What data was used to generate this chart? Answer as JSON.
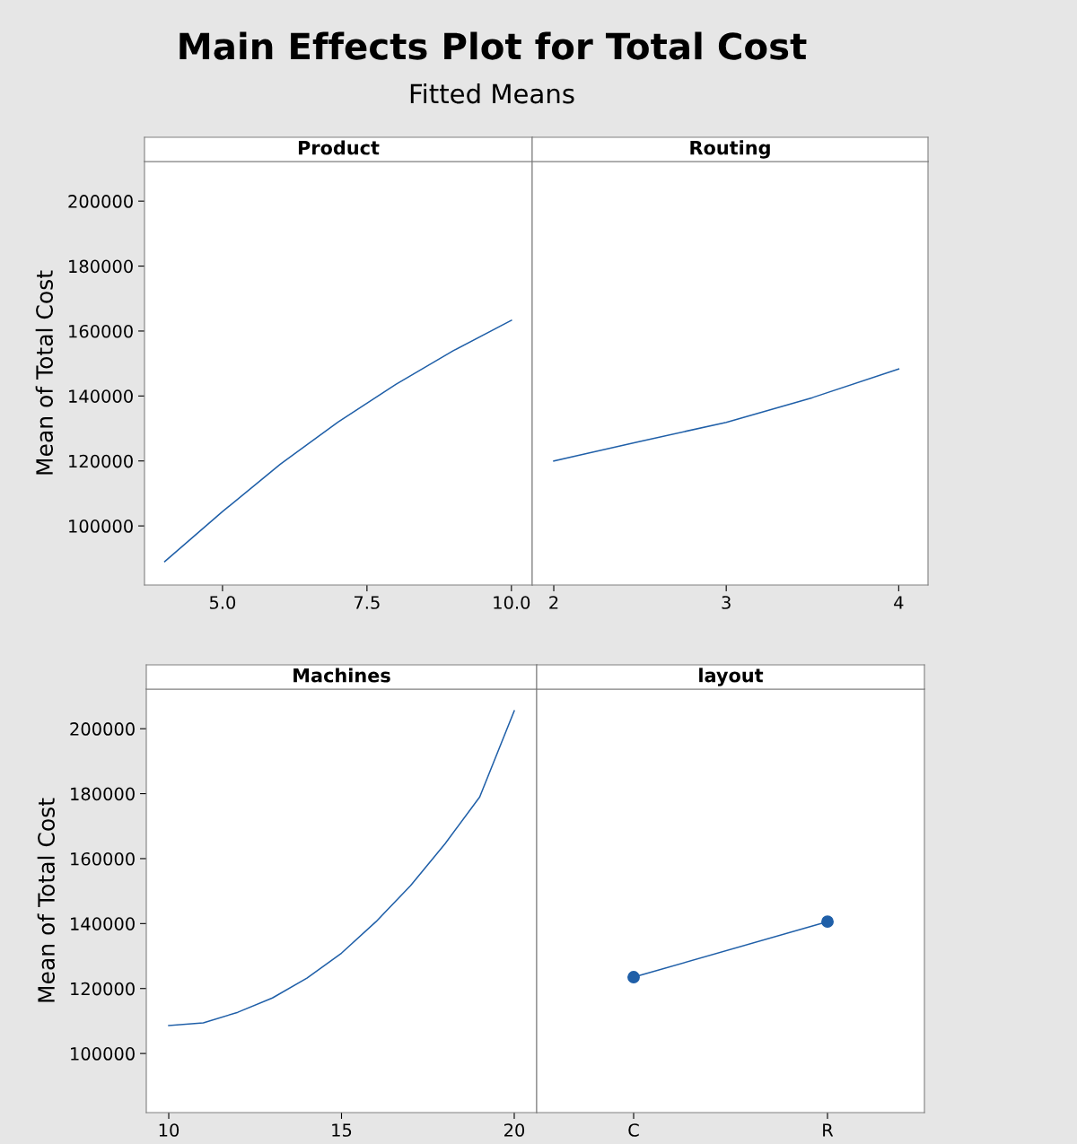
{
  "chart_data": [
    {
      "type": "other",
      "title": "Main Effects Plot for Total Cost",
      "subtitle": "Fitted Means"
    },
    {
      "type": "line",
      "title": "Product",
      "ylabel": "Mean of Total Cost",
      "color": "#1f5fa8",
      "marker": "none",
      "x": [
        4.0,
        5.0,
        6.0,
        7.0,
        8.0,
        9.0,
        10.0
      ],
      "values": [
        89000,
        104400,
        119000,
        132000,
        143600,
        154000,
        163300
      ],
      "xlim": [
        3.65,
        10.36
      ],
      "xticks": [
        {
          "value": 5.0,
          "label": "5.0"
        },
        {
          "value": 7.5,
          "label": "7.5"
        },
        {
          "value": 10.0,
          "label": "10.0"
        }
      ],
      "ylim": [
        81800,
        212200
      ],
      "yticks": [
        100000,
        120000,
        140000,
        160000,
        180000,
        200000
      ],
      "grid": false
    },
    {
      "type": "line",
      "title": "Routing",
      "color": "#1f5fa8",
      "marker": "none",
      "tick_labels": "x",
      "x": [
        2.0,
        2.5,
        3.0,
        3.5,
        4.0
      ],
      "values": [
        120000,
        126000,
        131900,
        139500,
        148300
      ],
      "xlim": [
        1.875,
        4.17
      ],
      "xticks": [
        2,
        3,
        4
      ],
      "ylim": [
        81800,
        212200
      ],
      "yticks": [
        100000,
        120000,
        140000,
        160000,
        180000,
        200000
      ],
      "grid": false
    },
    {
      "type": "line",
      "title": "Machines",
      "ylabel": "Mean of Total Cost",
      "color": "#1f5fa8",
      "marker": "none",
      "x": [
        10,
        11,
        12,
        13,
        14,
        15,
        16,
        17,
        18,
        19,
        20
      ],
      "values": [
        108600,
        109400,
        112700,
        117100,
        123200,
        130900,
        140600,
        151700,
        164600,
        179000,
        205500
      ],
      "xlim": [
        9.35,
        20.65
      ],
      "xticks": [
        10,
        15,
        20
      ],
      "ylim": [
        81800,
        212200
      ],
      "yticks": [
        100000,
        120000,
        140000,
        160000,
        180000,
        200000
      ],
      "grid": false
    },
    {
      "type": "line",
      "title": "layout",
      "color": "#1f5fa8",
      "marker": "circle",
      "tick_labels": "x",
      "categories": [
        "C",
        "R"
      ],
      "values": [
        123500,
        140600
      ],
      "ylim": [
        81800,
        212200
      ],
      "yticks": [
        100000,
        120000,
        140000,
        160000,
        180000,
        200000
      ],
      "grid": false
    }
  ]
}
